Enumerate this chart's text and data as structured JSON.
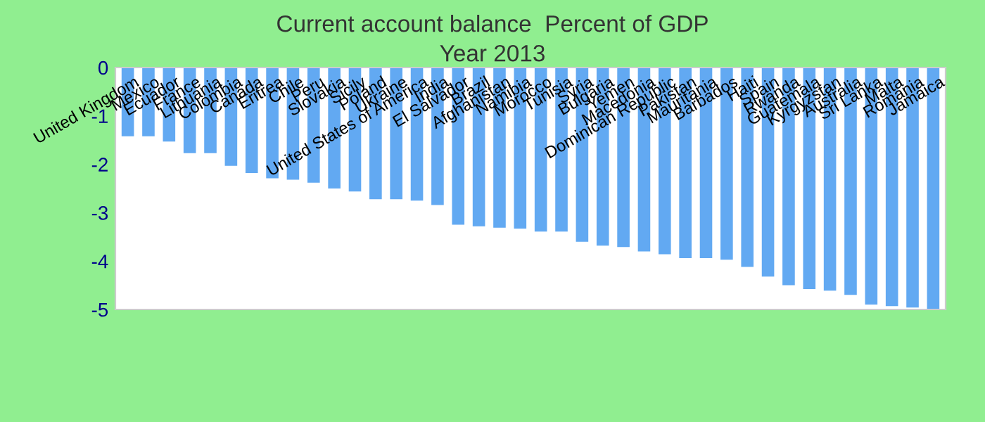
{
  "chart_data": {
    "type": "bar",
    "title": "Current account balance  Percent of GDP",
    "subtitle": "Year 2013",
    "categories": [
      "United Kingdom",
      "Mexico",
      "Ecuador",
      "France",
      "Lithuania",
      "Colombia",
      "Canada",
      "Eritrea",
      "Chile",
      "Peru",
      "Slovakia",
      "Sicily",
      "Poland",
      "Ukraine",
      "United States of America",
      "India",
      "El Salvador",
      "Brazil",
      "Afghanistan",
      "Namibia",
      "Morocco",
      "Tunisia",
      "Syria",
      "Bulgaria",
      "Yemen",
      "Macedonia",
      "Dominican Republic",
      "Pakistan",
      "Mauritania",
      "Barbados",
      "Haiti",
      "Spain",
      "Rwanda",
      "Guatemala",
      "Kyrgyzstan",
      "Australia",
      "Sri Lanka",
      "Malta",
      "Romania",
      "Jamaica"
    ],
    "values": [
      -1.42,
      -1.42,
      -1.53,
      -1.77,
      -1.77,
      -2.03,
      -2.18,
      -2.29,
      -2.32,
      -2.38,
      -2.5,
      -2.56,
      -2.72,
      -2.72,
      -2.75,
      -2.84,
      -3.25,
      -3.28,
      -3.31,
      -3.33,
      -3.39,
      -3.39,
      -3.6,
      -3.68,
      -3.71,
      -3.8,
      -3.86,
      -3.94,
      -3.94,
      -3.97,
      -4.12,
      -4.32,
      -4.5,
      -4.58,
      -4.61,
      -4.7,
      -4.9,
      -4.93,
      -4.96,
      -4.99
    ],
    "color": "#62a9f2",
    "ylim": [
      -5,
      0
    ],
    "yticks": [
      -5,
      -4,
      -3,
      -2,
      -1,
      0
    ],
    "grid": false,
    "legend": false
  }
}
